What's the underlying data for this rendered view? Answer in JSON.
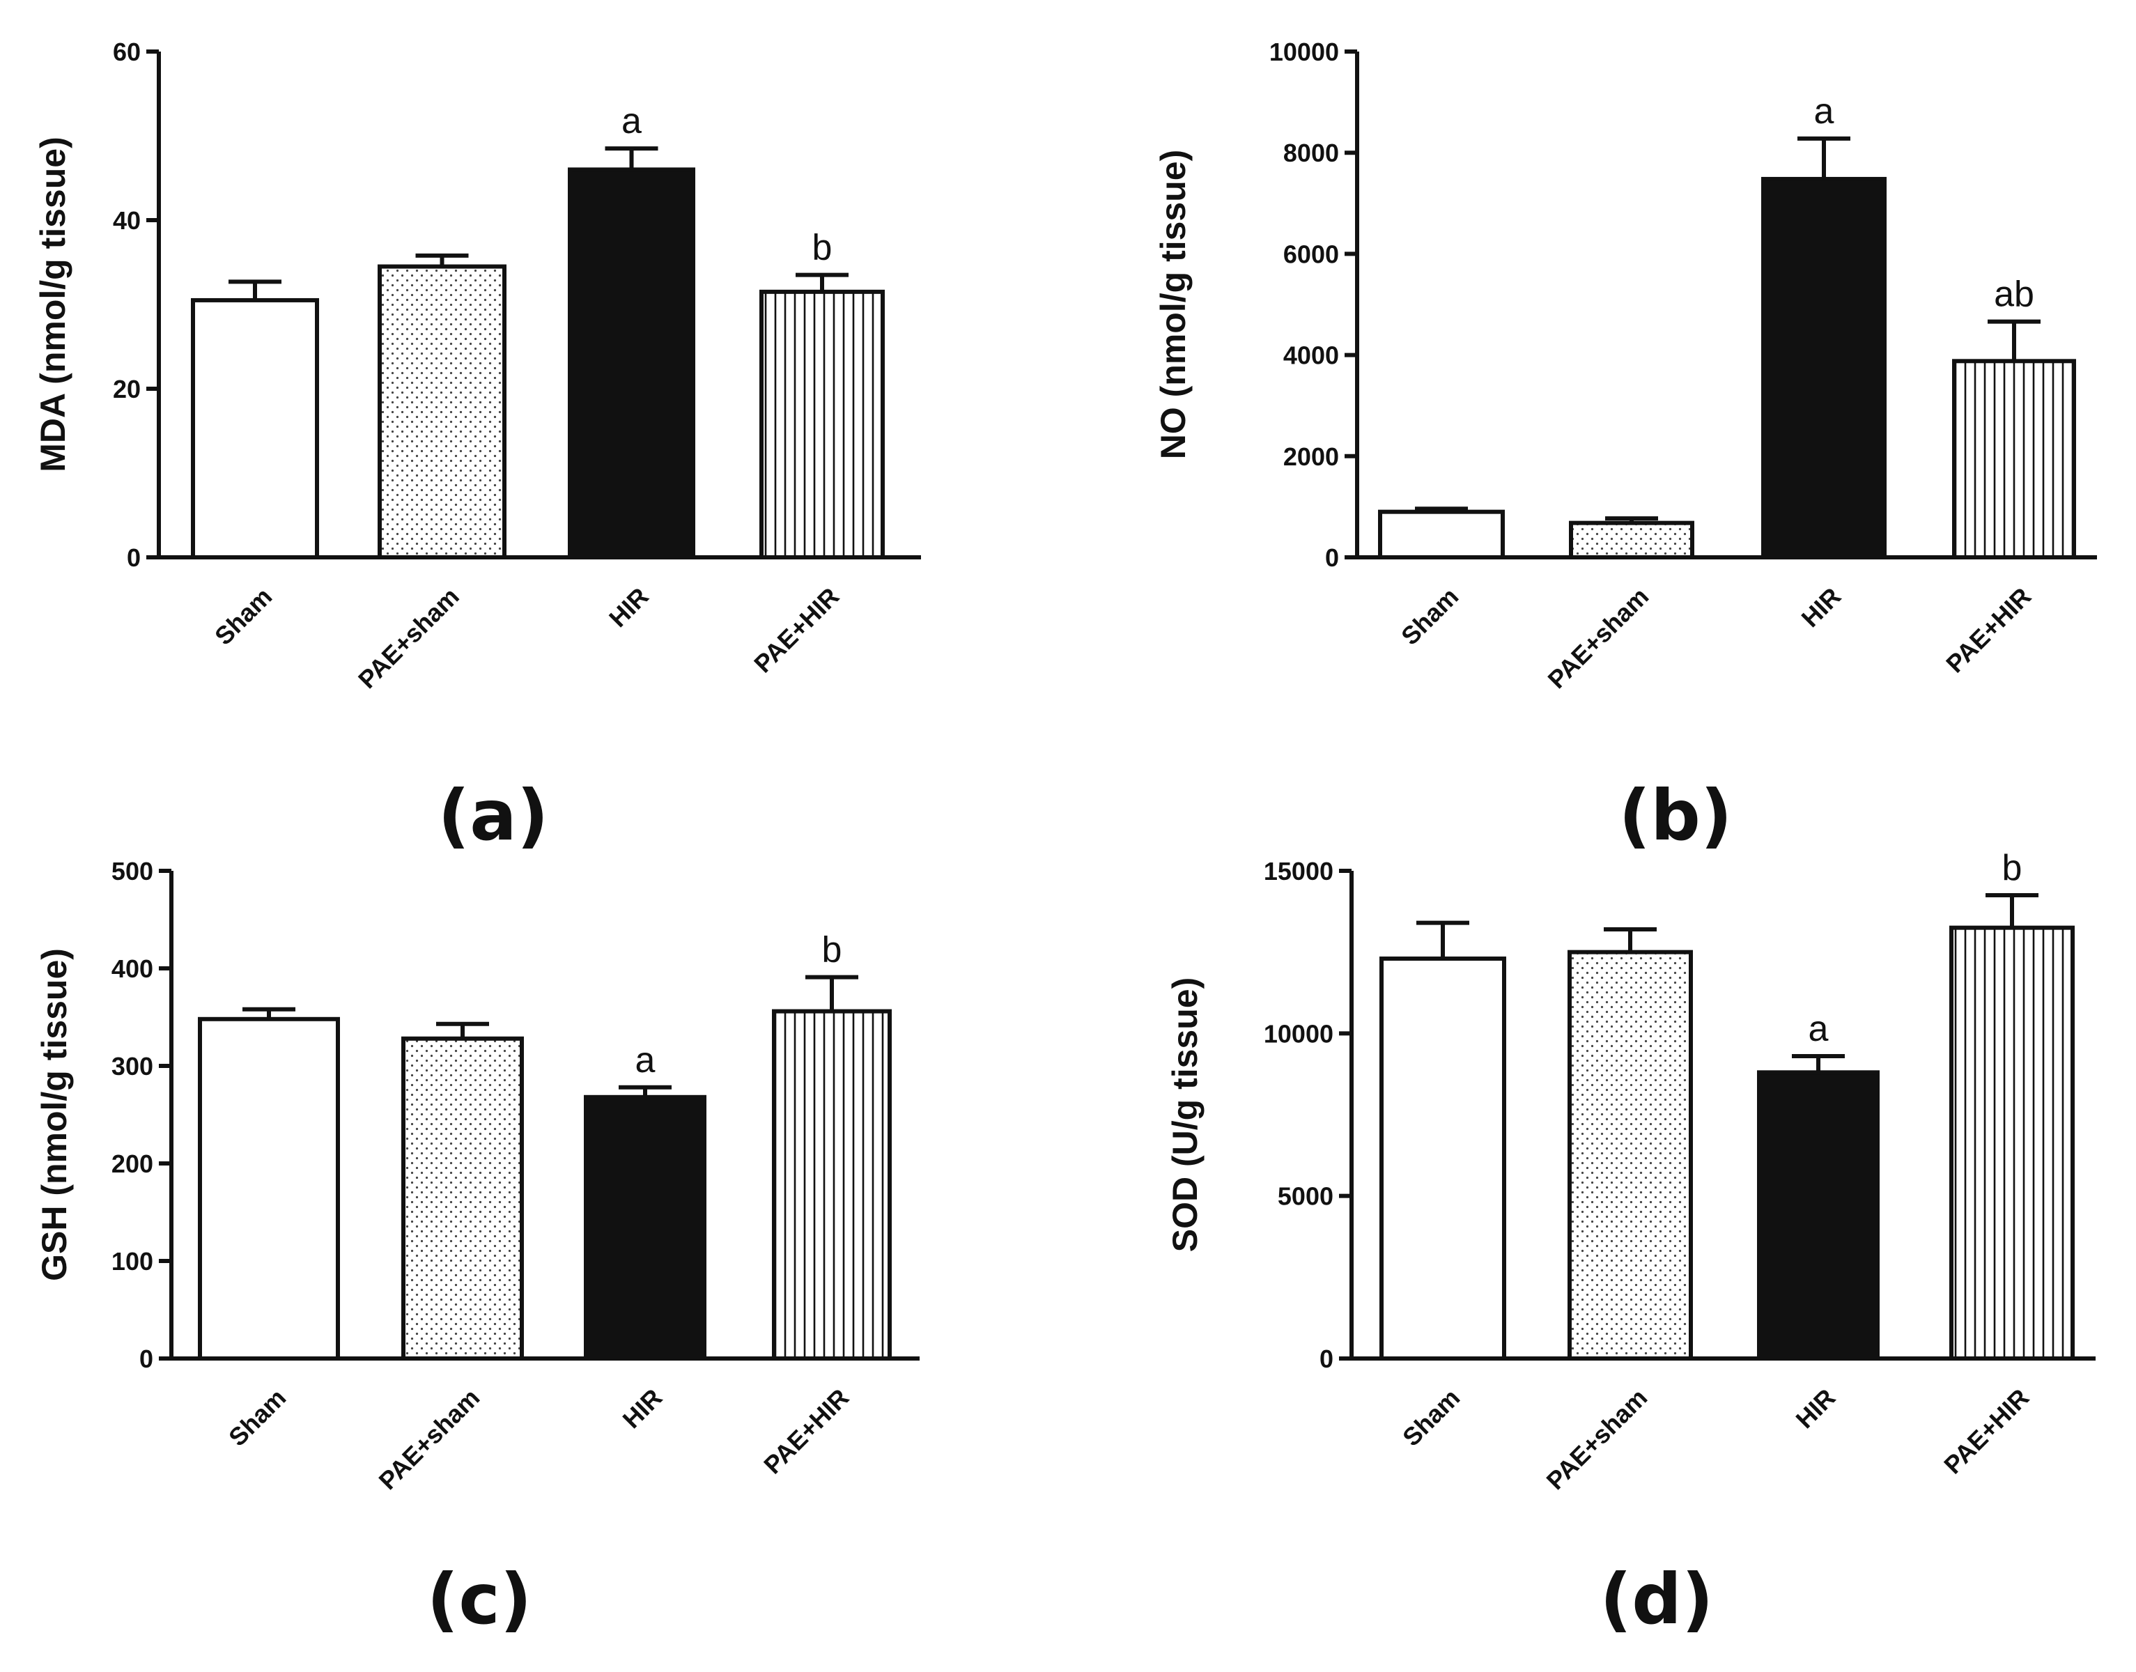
{
  "chart_data": [
    {
      "type": "bar",
      "panel_label": "(a)",
      "ylabel": "MDA (nmol/g tissue)",
      "categories": [
        "Sham",
        "PAE+sham",
        "HIR",
        "PAE+HIR"
      ],
      "values": [
        30.5,
        34.5,
        46,
        31.5
      ],
      "errors": [
        2.2,
        1.3,
        2.5,
        2
      ],
      "annotations": [
        "",
        "",
        "a",
        "b"
      ],
      "ylim": [
        0,
        60
      ],
      "yticks": [
        0,
        20,
        40,
        60
      ],
      "ytick_labels": [
        "0",
        "20",
        "40",
        "60"
      ],
      "patterns": [
        "white",
        "dots",
        "black",
        "vlines"
      ]
    },
    {
      "type": "bar",
      "panel_label": "(b)",
      "ylabel": "NO (nmol/g tissue)",
      "categories": [
        "Sham",
        "PAE+sham",
        "HIR",
        "PAE+HIR"
      ],
      "values": [
        900,
        680,
        7480,
        3880
      ],
      "errors": [
        60,
        90,
        800,
        780
      ],
      "annotations": [
        "",
        "",
        "a",
        "ab"
      ],
      "ylim": [
        0,
        10000
      ],
      "yticks": [
        0,
        2000,
        4000,
        6000,
        8000,
        10000
      ],
      "ytick_labels": [
        "0",
        "2000",
        "4000",
        "6000",
        "8000",
        "10000"
      ],
      "patterns": [
        "white",
        "dots",
        "black",
        "vlines"
      ]
    },
    {
      "type": "bar",
      "panel_label": "(c)",
      "ylabel": "GSH (nmol/g tissue)",
      "categories": [
        "Sham",
        "PAE+sham",
        "HIR",
        "PAE+HIR"
      ],
      "values": [
        348,
        328,
        268,
        356
      ],
      "errors": [
        10,
        15,
        10,
        35
      ],
      "annotations": [
        "",
        "",
        "a",
        "b"
      ],
      "ylim": [
        0,
        500
      ],
      "yticks": [
        0,
        100,
        200,
        300,
        400,
        500
      ],
      "ytick_labels": [
        "0",
        "100",
        "200",
        "300",
        "400",
        "500"
      ],
      "patterns": [
        "white",
        "dots",
        "black",
        "vlines"
      ]
    },
    {
      "type": "bar",
      "panel_label": "(d)",
      "ylabel": "SOD (U/g tissue)",
      "categories": [
        "Sham",
        "PAE+sham",
        "HIR",
        "PAE+HIR"
      ],
      "values": [
        12300,
        12500,
        8800,
        13250
      ],
      "errors": [
        1100,
        700,
        500,
        1000
      ],
      "annotations": [
        "",
        "",
        "a",
        "b"
      ],
      "ylim": [
        0,
        15000
      ],
      "yticks": [
        0,
        5000,
        10000,
        15000
      ],
      "ytick_labels": [
        "0",
        "5000",
        "10000",
        "15000"
      ],
      "patterns": [
        "white",
        "dots",
        "black",
        "vlines"
      ]
    }
  ]
}
